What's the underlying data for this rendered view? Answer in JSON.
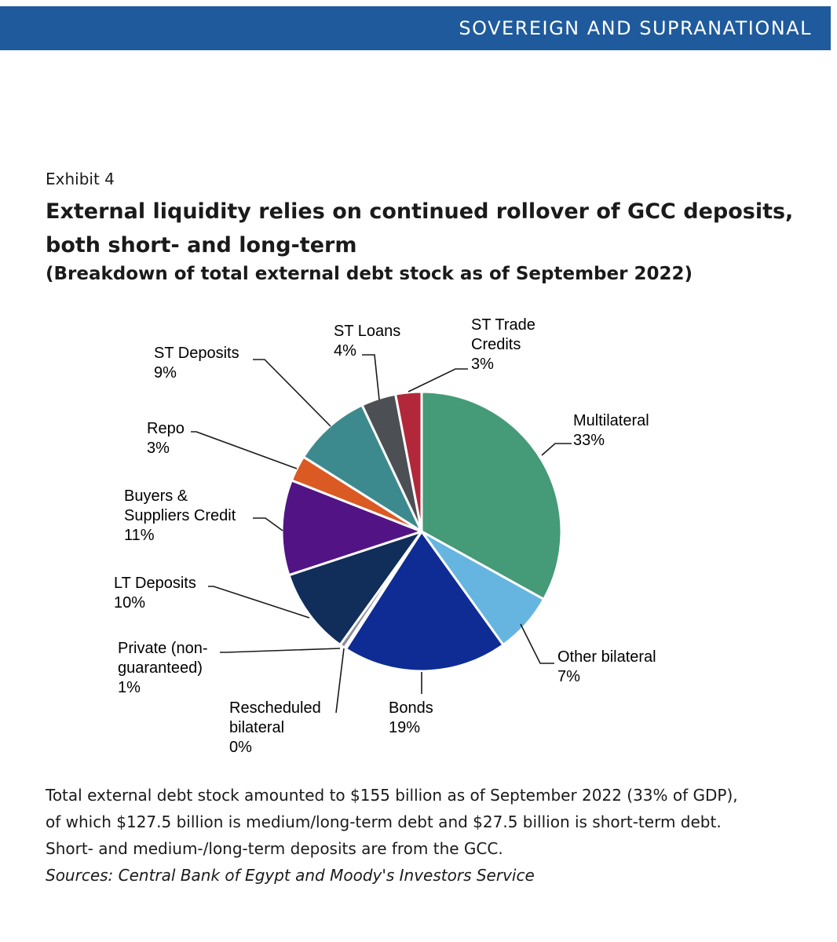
{
  "header": {
    "section": "SOVEREIGN AND SUPRANATIONAL"
  },
  "exhibit": {
    "label": "Exhibit 4",
    "title_line1": "External liquidity relies on continued rollover of GCC deposits,",
    "title_line2": "both short- and long-term",
    "subtitle": "(Breakdown of total external debt stock as of September 2022)"
  },
  "chart_data": {
    "type": "pie",
    "title": "External liquidity relies on continued rollover of GCC deposits, both short- and long-term",
    "subtitle": "(Breakdown of total external debt stock as of September 2022)",
    "unit": "%",
    "slices": [
      {
        "id": "multilateral",
        "label_lines": [
          "Multilateral"
        ],
        "pct_label": "33%",
        "value": 33,
        "color": "#459a78"
      },
      {
        "id": "other-bilateral",
        "label_lines": [
          "Other bilateral"
        ],
        "pct_label": "7%",
        "value": 7,
        "color": "#66b5e1"
      },
      {
        "id": "bonds",
        "label_lines": [
          "Bonds"
        ],
        "pct_label": "19%",
        "value": 19,
        "color": "#0f2c94"
      },
      {
        "id": "rescheduled-bilateral",
        "label_lines": [
          "Rescheduled",
          "bilateral"
        ],
        "pct_label": "0%",
        "value": 0.2,
        "color": "#2a2a5a"
      },
      {
        "id": "private-non-guaranteed",
        "label_lines": [
          "Private (non-",
          "guaranteed)"
        ],
        "pct_label": "1%",
        "value": 0.6,
        "color": "#8a8f9a"
      },
      {
        "id": "lt-deposits",
        "label_lines": [
          "LT Deposits"
        ],
        "pct_label": "10%",
        "value": 10,
        "color": "#112d5a"
      },
      {
        "id": "buyers-suppliers-credit",
        "label_lines": [
          "Buyers &",
          "Suppliers Credit"
        ],
        "pct_label": "11%",
        "value": 11,
        "color": "#521485"
      },
      {
        "id": "repo",
        "label_lines": [
          "Repo"
        ],
        "pct_label": "3%",
        "value": 3,
        "color": "#db5a24"
      },
      {
        "id": "st-deposits",
        "label_lines": [
          "ST Deposits"
        ],
        "pct_label": "9%",
        "value": 9,
        "color": "#3d8a8e"
      },
      {
        "id": "st-loans",
        "label_lines": [
          "ST Loans"
        ],
        "pct_label": "4%",
        "value": 4,
        "color": "#4c5055"
      },
      {
        "id": "st-trade-credits",
        "label_lines": [
          "ST Trade",
          "Credits"
        ],
        "pct_label": "3%",
        "value": 3,
        "color": "#b2283a"
      }
    ]
  },
  "notes": {
    "line1": "Total external debt stock amounted to $155 billion as of September 2022 (33% of GDP),",
    "line2": "of which $127.5 billion is medium/long-term debt and $27.5 billion is short-term debt.",
    "line3": "Short- and medium-/long-term deposits are from the GCC.",
    "sources": "Sources: Central Bank of Egypt and Moody's Investors Service"
  }
}
